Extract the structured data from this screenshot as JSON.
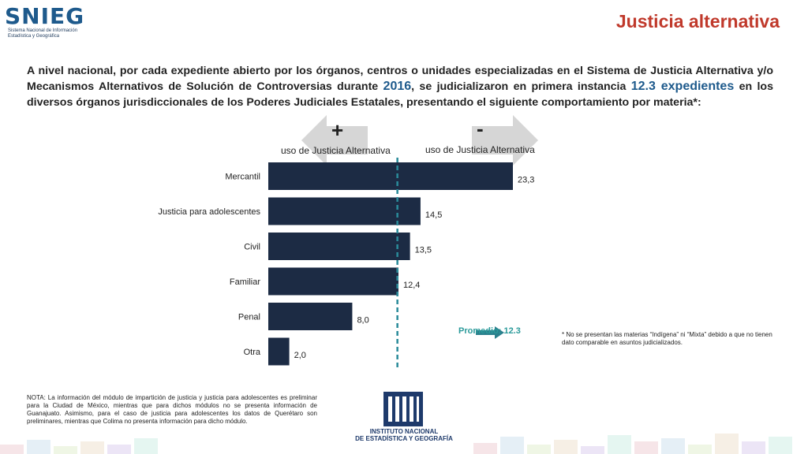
{
  "header": {
    "logo_text": "SNIEG",
    "logo_subtitle_line1": "Sistema Nacional de Información",
    "logo_subtitle_line2": "Estadística y Geográfica",
    "title": "Justicia alternativa"
  },
  "intro": {
    "part1": "A nivel nacional, por cada expediente abierto por los órganos, centros o unidades especializadas en el Sistema de Justicia Alternativa y/o Mecanismos Alternativos de Solución de Controversias durante ",
    "year": "2016",
    "part2": ", se judicializaron en primera instancia ",
    "value": "12.3 expedientes",
    "part3": " en los diversos órganos jurisdiccionales de los Poderes Judiciales Estatales, presentando el siguiente comportamiento por materia*:"
  },
  "legend_arrows": {
    "left_sign": "+",
    "left_caption": "uso de Justicia Alternativa",
    "right_sign": "-",
    "right_caption": "uso de Justicia Alternativa"
  },
  "chart_data": {
    "type": "bar",
    "orientation": "horizontal",
    "categories": [
      "Mercantil",
      "Justicia para adolescentes",
      "Civil",
      "Familiar",
      "Penal",
      "Otra"
    ],
    "values": [
      23.3,
      14.5,
      13.5,
      12.4,
      8.0,
      2.0
    ],
    "value_labels": [
      "23,3",
      "14,5",
      "13,5",
      "12,4",
      "8,0",
      "2,0"
    ],
    "average": 12.3,
    "average_label": "Promedio: 12.3",
    "xlim": [
      0,
      25
    ],
    "grid": false,
    "colors": {
      "bar": "#1c2b44",
      "average_line": "#2a8b9a",
      "average_arrow": "#2a7f8c"
    }
  },
  "footnote": "* No se presentan las materias “Indígena” ni “Mixta” debido a que no tienen dato comparable en asuntos judicializados.",
  "nota": "NOTA: La información del módulo de impartición de justicia y justicia para adolescentes es preliminar para la Ciudad de México, mientras que para dichos módulos no se presenta información de Guanajuato. Asimismo, para el caso de justicia para adolescentes los datos de Querétaro son preliminares, mientras que Colima no presenta información para dicho módulo.",
  "inegi": {
    "mark": "INEGI",
    "name_line1": "INSTITUTO NACIONAL",
    "name_line2": "DE ESTADÍSTICA Y GEOGRAFÍA"
  },
  "colors": {
    "title": "#c0392b",
    "accent": "#1e5a8c",
    "bar": "#1c2b44"
  }
}
